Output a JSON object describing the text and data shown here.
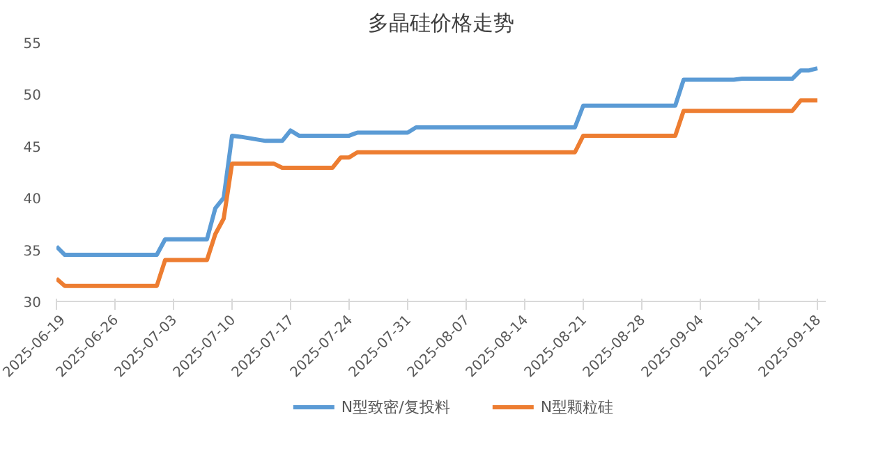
{
  "chart_data": {
    "type": "line",
    "title": "多晶硅价格走势",
    "xlim": [
      "2025-06-19",
      "2025-09-19"
    ],
    "xticks": [
      "2025-06-19",
      "2025-06-26",
      "2025-07-03",
      "2025-07-10",
      "2025-07-17",
      "2025-07-24",
      "2025-07-31",
      "2025-08-07",
      "2025-08-14",
      "2025-08-21",
      "2025-08-28",
      "2025-09-04",
      "2025-09-11",
      "2025-09-18"
    ],
    "ylim": [
      30,
      55
    ],
    "yticks": [
      30,
      35,
      40,
      45,
      50,
      55
    ],
    "grid": false,
    "legend": "bottom",
    "marker": "none",
    "line_style": "solid",
    "series": [
      {
        "name": "N型致密/复投料",
        "color": "#5b9bd5",
        "x": [
          "2025-06-19",
          "2025-06-20",
          "2025-07-01",
          "2025-07-02",
          "2025-07-07",
          "2025-07-08",
          "2025-07-09",
          "2025-07-10",
          "2025-07-11",
          "2025-07-14",
          "2025-07-16",
          "2025-07-17",
          "2025-07-18",
          "2025-07-24",
          "2025-07-25",
          "2025-07-31",
          "2025-08-01",
          "2025-08-20",
          "2025-08-21",
          "2025-09-01",
          "2025-09-02",
          "2025-09-08",
          "2025-09-09",
          "2025-09-15",
          "2025-09-16",
          "2025-09-17",
          "2025-09-18"
        ],
        "values": [
          35.3,
          34.5,
          34.5,
          36,
          36,
          39,
          40,
          46,
          45.9,
          45.5,
          45.5,
          46.5,
          46,
          46,
          46.3,
          46.3,
          46.8,
          46.8,
          48.9,
          48.9,
          51.4,
          51.4,
          51.5,
          51.5,
          52.3,
          52.3,
          52.5
        ]
      },
      {
        "name": "N型颗粒硅",
        "color": "#ed7d31",
        "x": [
          "2025-06-19",
          "2025-06-20",
          "2025-07-01",
          "2025-07-02",
          "2025-07-07",
          "2025-07-08",
          "2025-07-09",
          "2025-07-10",
          "2025-07-15",
          "2025-07-16",
          "2025-07-22",
          "2025-07-23",
          "2025-07-24",
          "2025-07-25",
          "2025-08-20",
          "2025-08-21",
          "2025-09-01",
          "2025-09-02",
          "2025-09-15",
          "2025-09-16",
          "2025-09-18"
        ],
        "values": [
          32.2,
          31.5,
          31.5,
          34,
          34,
          36.5,
          38,
          43.3,
          43.3,
          42.9,
          42.9,
          43.9,
          43.9,
          44.4,
          44.4,
          46,
          46,
          48.4,
          48.4,
          49.4,
          49.4
        ]
      }
    ]
  }
}
